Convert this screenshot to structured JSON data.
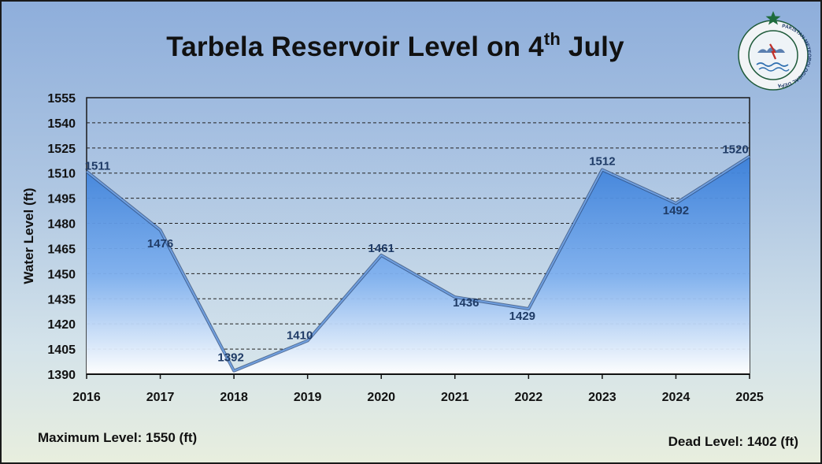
{
  "title": {
    "prefix": "Tarbela Reservoir Level on 4",
    "sup": "th",
    "suffix": " July"
  },
  "logo": {
    "name": "pakistan-meteorological-department-logo",
    "text": "PAKISTAN METEOROLOGICAL DEPARTMENT"
  },
  "notes": {
    "maximum": "Maximum Level: 1550 (ft)",
    "dead": "Dead Level: 1402 (ft)"
  },
  "colors": {
    "line": "#6f9fe0",
    "area_top": "#3a7fd9",
    "area_bottom": "#ffffff",
    "label": "#1f3b66",
    "grid": "#222222"
  },
  "chart_data": {
    "type": "area",
    "x": [
      "2016",
      "2017",
      "2018",
      "2019",
      "2020",
      "2021",
      "2022",
      "2023",
      "2024",
      "2025"
    ],
    "series": [
      {
        "values": [
          1511,
          1476,
          1392,
          1410,
          1461,
          1436,
          1429,
          1512,
          1492,
          1520
        ]
      }
    ],
    "ylabel": "Water Level (ft)",
    "xlabel": "",
    "ylim": [
      1390,
      1555
    ],
    "yticks": [
      1390,
      1405,
      1420,
      1435,
      1450,
      1465,
      1480,
      1495,
      1510,
      1525,
      1540,
      1555
    ],
    "grid": true,
    "data_labels": true
  }
}
